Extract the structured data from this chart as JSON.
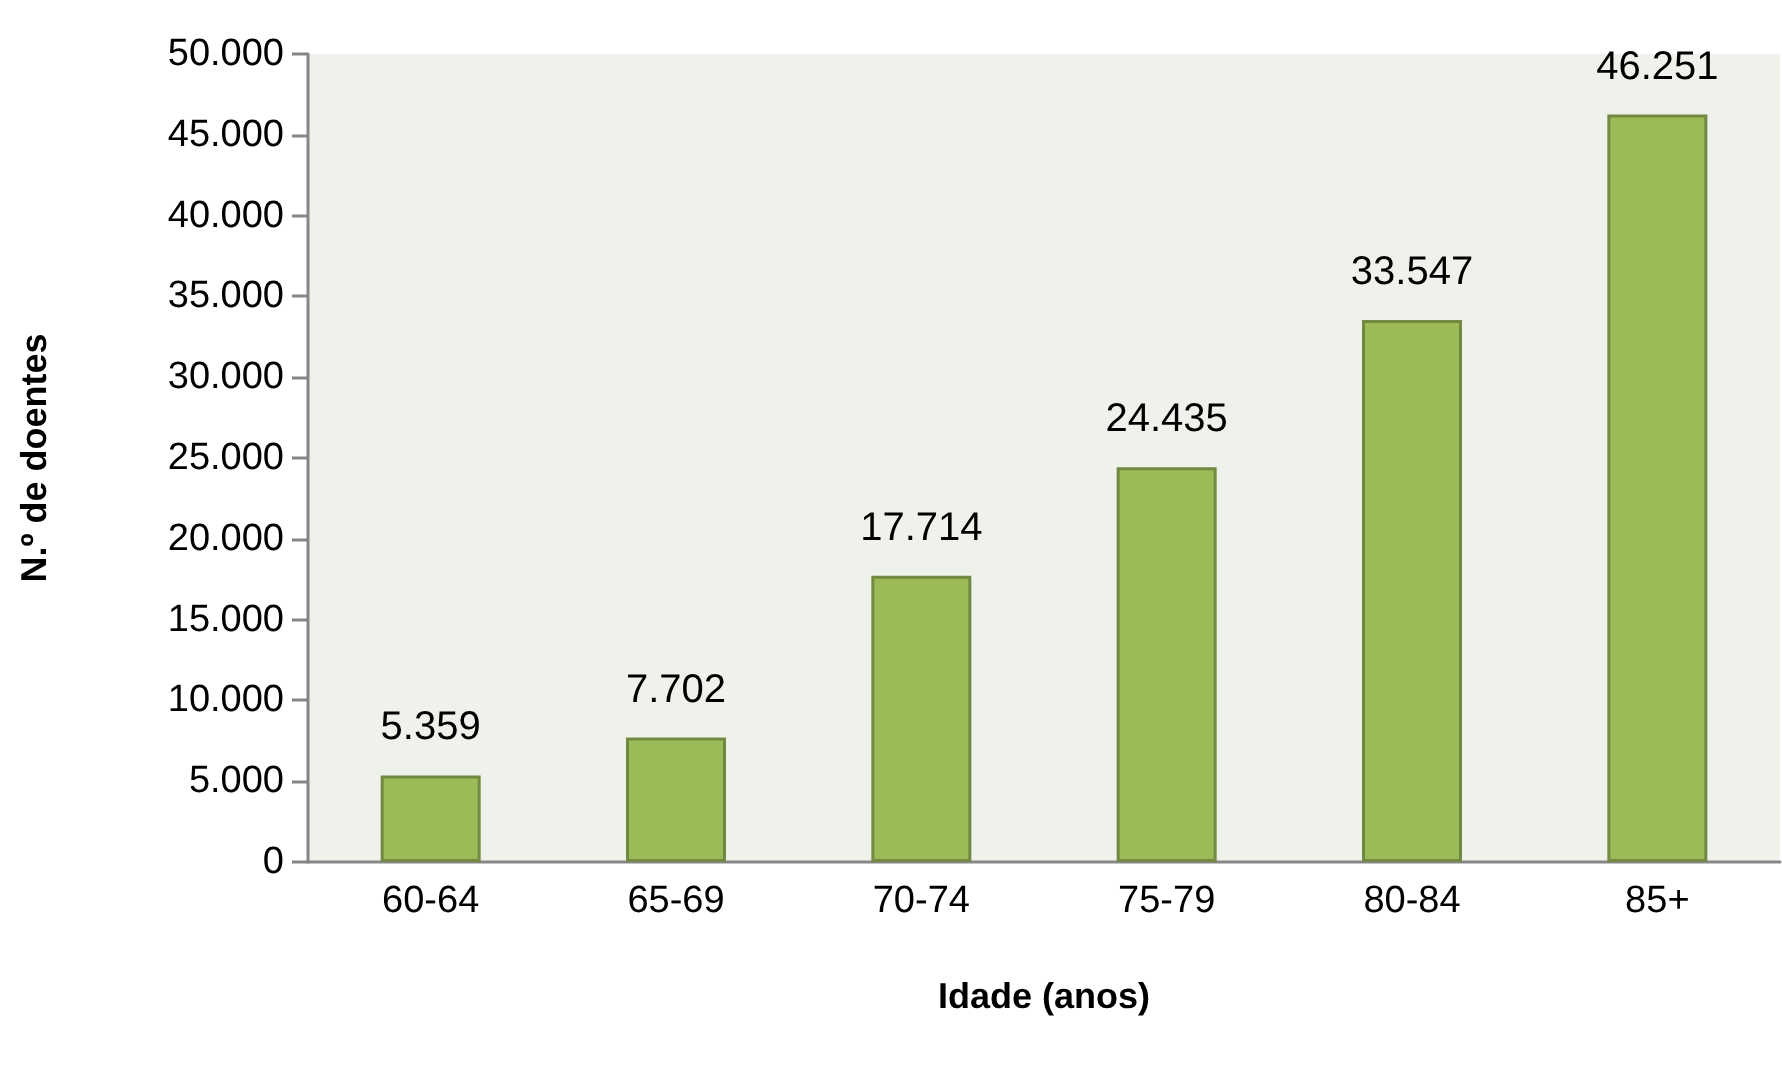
{
  "chart_data": {
    "type": "bar",
    "xlabel": "Idade (anos)",
    "ylabel": "N.º de doentes",
    "categories": [
      "60-64",
      "65-69",
      "70-74",
      "75-79",
      "80-84",
      "85+"
    ],
    "values": [
      5359,
      7702,
      17714,
      24435,
      33547,
      46251
    ],
    "value_labels": [
      "5.359",
      "7.702",
      "17.714",
      "24.435",
      "33.547",
      "46.251"
    ],
    "color": "#9bbb59",
    "ylim": [
      0,
      50000
    ],
    "yticks": [
      0,
      {
        "value": 5000,
        "label": "5.000"
      },
      {
        "value": 10000,
        "label": "10.000"
      },
      {
        "value": 15000,
        "label": "15.000"
      },
      {
        "value": 20000,
        "label": "20.000"
      },
      {
        "value": 25000,
        "label": "25.000"
      },
      {
        "value": 30000,
        "label": "30.000"
      },
      {
        "value": 35000,
        "label": "35.000"
      },
      {
        "value": 40000,
        "label": "40.000"
      },
      {
        "value": 45000,
        "label": "45.000"
      },
      {
        "value": 50000,
        "label": "50.000"
      }
    ],
    "grid": false
  }
}
